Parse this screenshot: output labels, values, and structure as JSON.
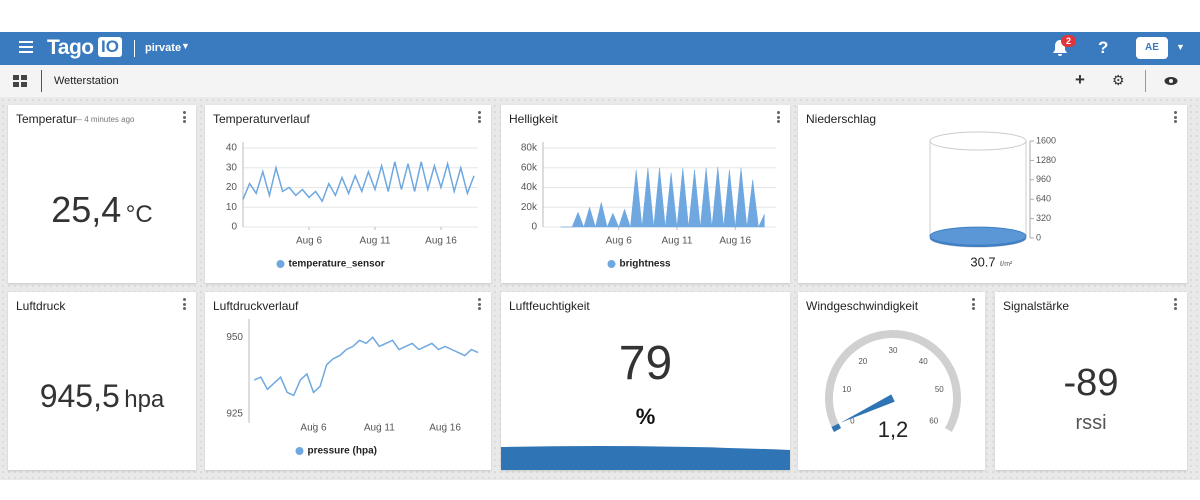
{
  "header": {
    "logo_main": "Tago",
    "logo_badge": "IO",
    "account": "pirvate",
    "notifications": "2",
    "help": "?",
    "user": "AE"
  },
  "toolbar": {
    "title": "Wetterstation"
  },
  "widgets": {
    "temperatur": {
      "title": "Temperatur",
      "time": "— 4 minutes ago",
      "value": "25,4",
      "unit": "°C"
    },
    "luftdruck": {
      "title": "Luftdruck",
      "value": "945,5",
      "unit": "hpa"
    },
    "luftfeuchtigkeit": {
      "title": "Luftfeuchtigkeit",
      "value": "79",
      "unit": "%"
    },
    "signal": {
      "title": "Signalstärke",
      "value": "-89",
      "unit": "rssi"
    }
  },
  "chart_data": [
    {
      "type": "line",
      "title": "Temperaturverlauf",
      "x": [
        1,
        1.5,
        2,
        2.5,
        3,
        3.5,
        4,
        4.5,
        5,
        5.5,
        6,
        6.5,
        7,
        7.5,
        8,
        8.5,
        9,
        9.5,
        10,
        10.5,
        11,
        11.5,
        12,
        12.5,
        13,
        13.5,
        14,
        14.5,
        15,
        15.5,
        16,
        16.5,
        17,
        17.5,
        18,
        18.5
      ],
      "series": [
        {
          "name": "temperature_sensor",
          "color": "#6fa8e0",
          "values": [
            14,
            22,
            17,
            28,
            16,
            30,
            18,
            20,
            16,
            19,
            15,
            18,
            13,
            22,
            16,
            25,
            17,
            26,
            18,
            28,
            19,
            31,
            18,
            33,
            19,
            32,
            18,
            33,
            19,
            31,
            20,
            32,
            18,
            30,
            17,
            26
          ]
        }
      ],
      "xlim": [
        1,
        18.8
      ],
      "xticks": [
        {
          "value": 6,
          "label": "Aug 6"
        },
        {
          "value": 11,
          "label": "Aug 11"
        },
        {
          "value": 16,
          "label": "Aug 16"
        }
      ],
      "ylim": [
        0,
        40
      ],
      "yticks": [
        0,
        10,
        20,
        30,
        40
      ],
      "grid": true
    },
    {
      "type": "area",
      "title": "Helligkeit",
      "x": [
        1,
        1.5,
        2,
        2.5,
        3,
        3.5,
        4,
        4.5,
        5,
        5.5,
        6,
        6.5,
        7,
        7.5,
        8,
        8.5,
        9,
        9.5,
        10,
        10.5,
        11,
        11.5,
        12,
        12.5,
        13,
        13.5,
        14,
        14.5,
        15,
        15.5,
        16,
        16.5,
        17,
        17.5,
        18,
        18.5
      ],
      "series": [
        {
          "name": "brightness",
          "color": "#6fa8e0",
          "values": [
            0,
            0,
            0,
            15000,
            0,
            20000,
            0,
            25000,
            0,
            14000,
            0,
            18000,
            0,
            58000,
            0,
            60000,
            0,
            60000,
            0,
            55000,
            0,
            60000,
            0,
            58000,
            0,
            60000,
            0,
            61000,
            0,
            58000,
            0,
            60000,
            0,
            48000,
            0,
            13000
          ]
        }
      ],
      "xlim": [
        -0.5,
        19.5
      ],
      "xticks": [
        {
          "value": 6,
          "label": "Aug 6"
        },
        {
          "value": 11,
          "label": "Aug 11"
        },
        {
          "value": 16,
          "label": "Aug 16"
        }
      ],
      "ylim": [
        0,
        80000
      ],
      "yticks": [
        {
          "value": 0,
          "label": "0"
        },
        {
          "value": 20000,
          "label": "20k"
        },
        {
          "value": 40000,
          "label": "40k"
        },
        {
          "value": 60000,
          "label": "60k"
        },
        {
          "value": 80000,
          "label": "80k"
        }
      ],
      "grid": true
    },
    {
      "type": "line",
      "title": "Luftdruckverlauf",
      "x": [
        1.5,
        2,
        2.5,
        3,
        3.5,
        4,
        4.5,
        5,
        5.5,
        6,
        6.5,
        7,
        7.5,
        8,
        8.5,
        9,
        9.5,
        10,
        10.5,
        11,
        11.5,
        12,
        12.5,
        13,
        13.5,
        14,
        14.5,
        15,
        15.5,
        16,
        16.5,
        17,
        17.5,
        18,
        18.5
      ],
      "series": [
        {
          "name": "pressure (hpa)",
          "color": "#6fa8e0",
          "values": [
            936,
            937,
            933,
            935,
            937,
            932,
            931,
            936,
            938,
            932,
            934,
            941,
            943,
            944,
            946,
            947,
            949,
            948,
            950,
            947,
            948,
            949,
            946,
            947,
            948,
            946,
            947,
            948,
            946,
            947,
            946,
            945,
            944,
            946,
            945
          ]
        }
      ],
      "xlim": [
        1.1,
        18.5
      ],
      "xticks": [
        {
          "value": 6,
          "label": "Aug 6"
        },
        {
          "value": 11,
          "label": "Aug 11"
        },
        {
          "value": 16,
          "label": "Aug 16"
        }
      ],
      "ylim": [
        922,
        954
      ],
      "yticks": [
        925,
        950
      ],
      "grid": false
    },
    {
      "type": "cylinder",
      "title": "Niederschlag",
      "value": 30.7,
      "unit": "ℓ/m²",
      "color": "#3d7fc4",
      "ylim": [
        0,
        1600
      ],
      "yticks": [
        0,
        320,
        640,
        960,
        1280,
        1600
      ]
    },
    {
      "type": "gauge",
      "title": "Windgeschwindigkeit",
      "value": 1.2,
      "value_label": "1,2",
      "color": "#2f74b5",
      "ylim": [
        0,
        60
      ],
      "yticks": [
        0,
        10,
        20,
        30,
        40,
        50,
        60
      ]
    }
  ]
}
